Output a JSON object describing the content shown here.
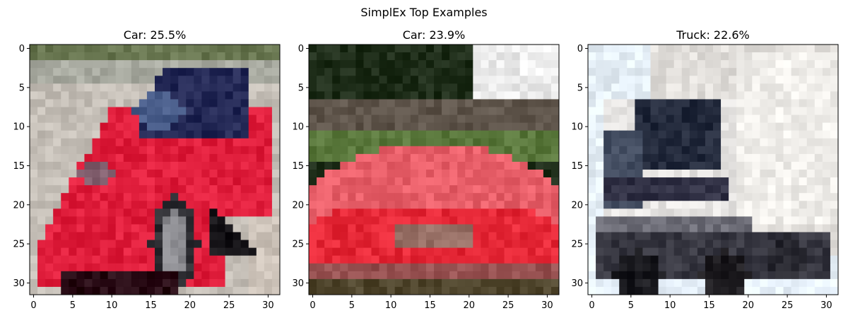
{
  "figure": {
    "title": "SimplEx Top Examples"
  },
  "chart_data": {
    "type": "image-grid",
    "title": "SimplEx Top Examples",
    "grid": false,
    "panels": [
      {
        "title": "Car: 25.5%",
        "label": "Car",
        "weight_percent": 25.5,
        "image_content": "red sports car, three-quarter view, parked on pavement",
        "xlim": [
          -0.5,
          31.5
        ],
        "ylim": [
          31.5,
          -0.5
        ],
        "xticks": [
          0,
          5,
          10,
          15,
          20,
          25,
          30
        ],
        "yticks": [
          0,
          5,
          10,
          15,
          20,
          25,
          30
        ]
      },
      {
        "title": "Car: 23.9%",
        "label": "Car",
        "weight_percent": 23.9,
        "image_content": "red car seen from the front, trees and sky behind",
        "xlim": [
          -0.5,
          31.5
        ],
        "ylim": [
          31.5,
          -0.5
        ],
        "xticks": [
          0,
          5,
          10,
          15,
          20,
          25,
          30
        ],
        "yticks": [
          0,
          5,
          10,
          15,
          20,
          25,
          30
        ]
      },
      {
        "title": "Truck: 22.6%",
        "label": "Truck",
        "weight_percent": 22.6,
        "image_content": "white box truck with dark windshield and black wheels",
        "xlim": [
          -0.5,
          31.5
        ],
        "ylim": [
          31.5,
          -0.5
        ],
        "xticks": [
          0,
          5,
          10,
          15,
          20,
          25,
          30
        ],
        "yticks": [
          0,
          5,
          10,
          15,
          20,
          25,
          30
        ]
      }
    ]
  }
}
